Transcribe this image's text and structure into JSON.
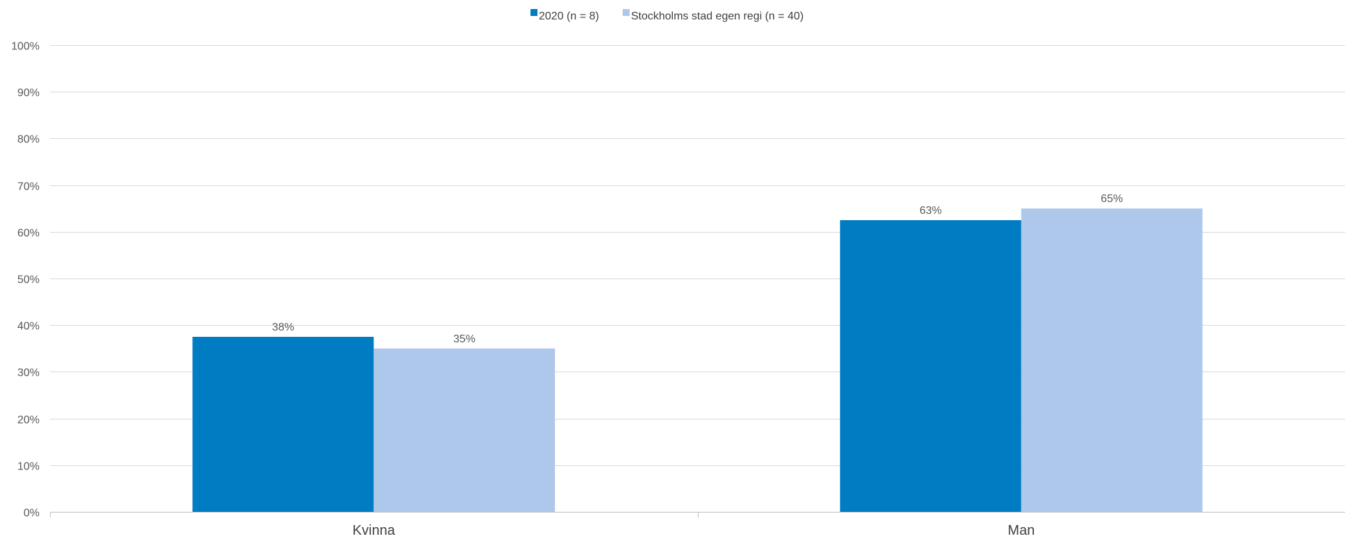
{
  "chart_data": {
    "type": "bar",
    "categories": [
      "Kvinna",
      "Man"
    ],
    "series": [
      {
        "name": "2020 (n = 8)",
        "color": "#007cc3",
        "values": [
          37.5,
          62.5
        ],
        "labels": [
          "38%",
          "63%"
        ]
      },
      {
        "name": "Stockholms stad egen regi (n = 40)",
        "color": "#aec8eb",
        "values": [
          35,
          65
        ],
        "labels": [
          "35%",
          "65%"
        ]
      }
    ],
    "ylim": [
      0,
      100
    ],
    "yticks": [
      0,
      10,
      20,
      30,
      40,
      50,
      60,
      70,
      80,
      90,
      100
    ],
    "ytick_labels": [
      "0%",
      "10%",
      "20%",
      "30%",
      "40%",
      "50%",
      "60%",
      "70%",
      "80%",
      "90%",
      "100%"
    ],
    "grid": true,
    "legend_position": "top-center"
  }
}
